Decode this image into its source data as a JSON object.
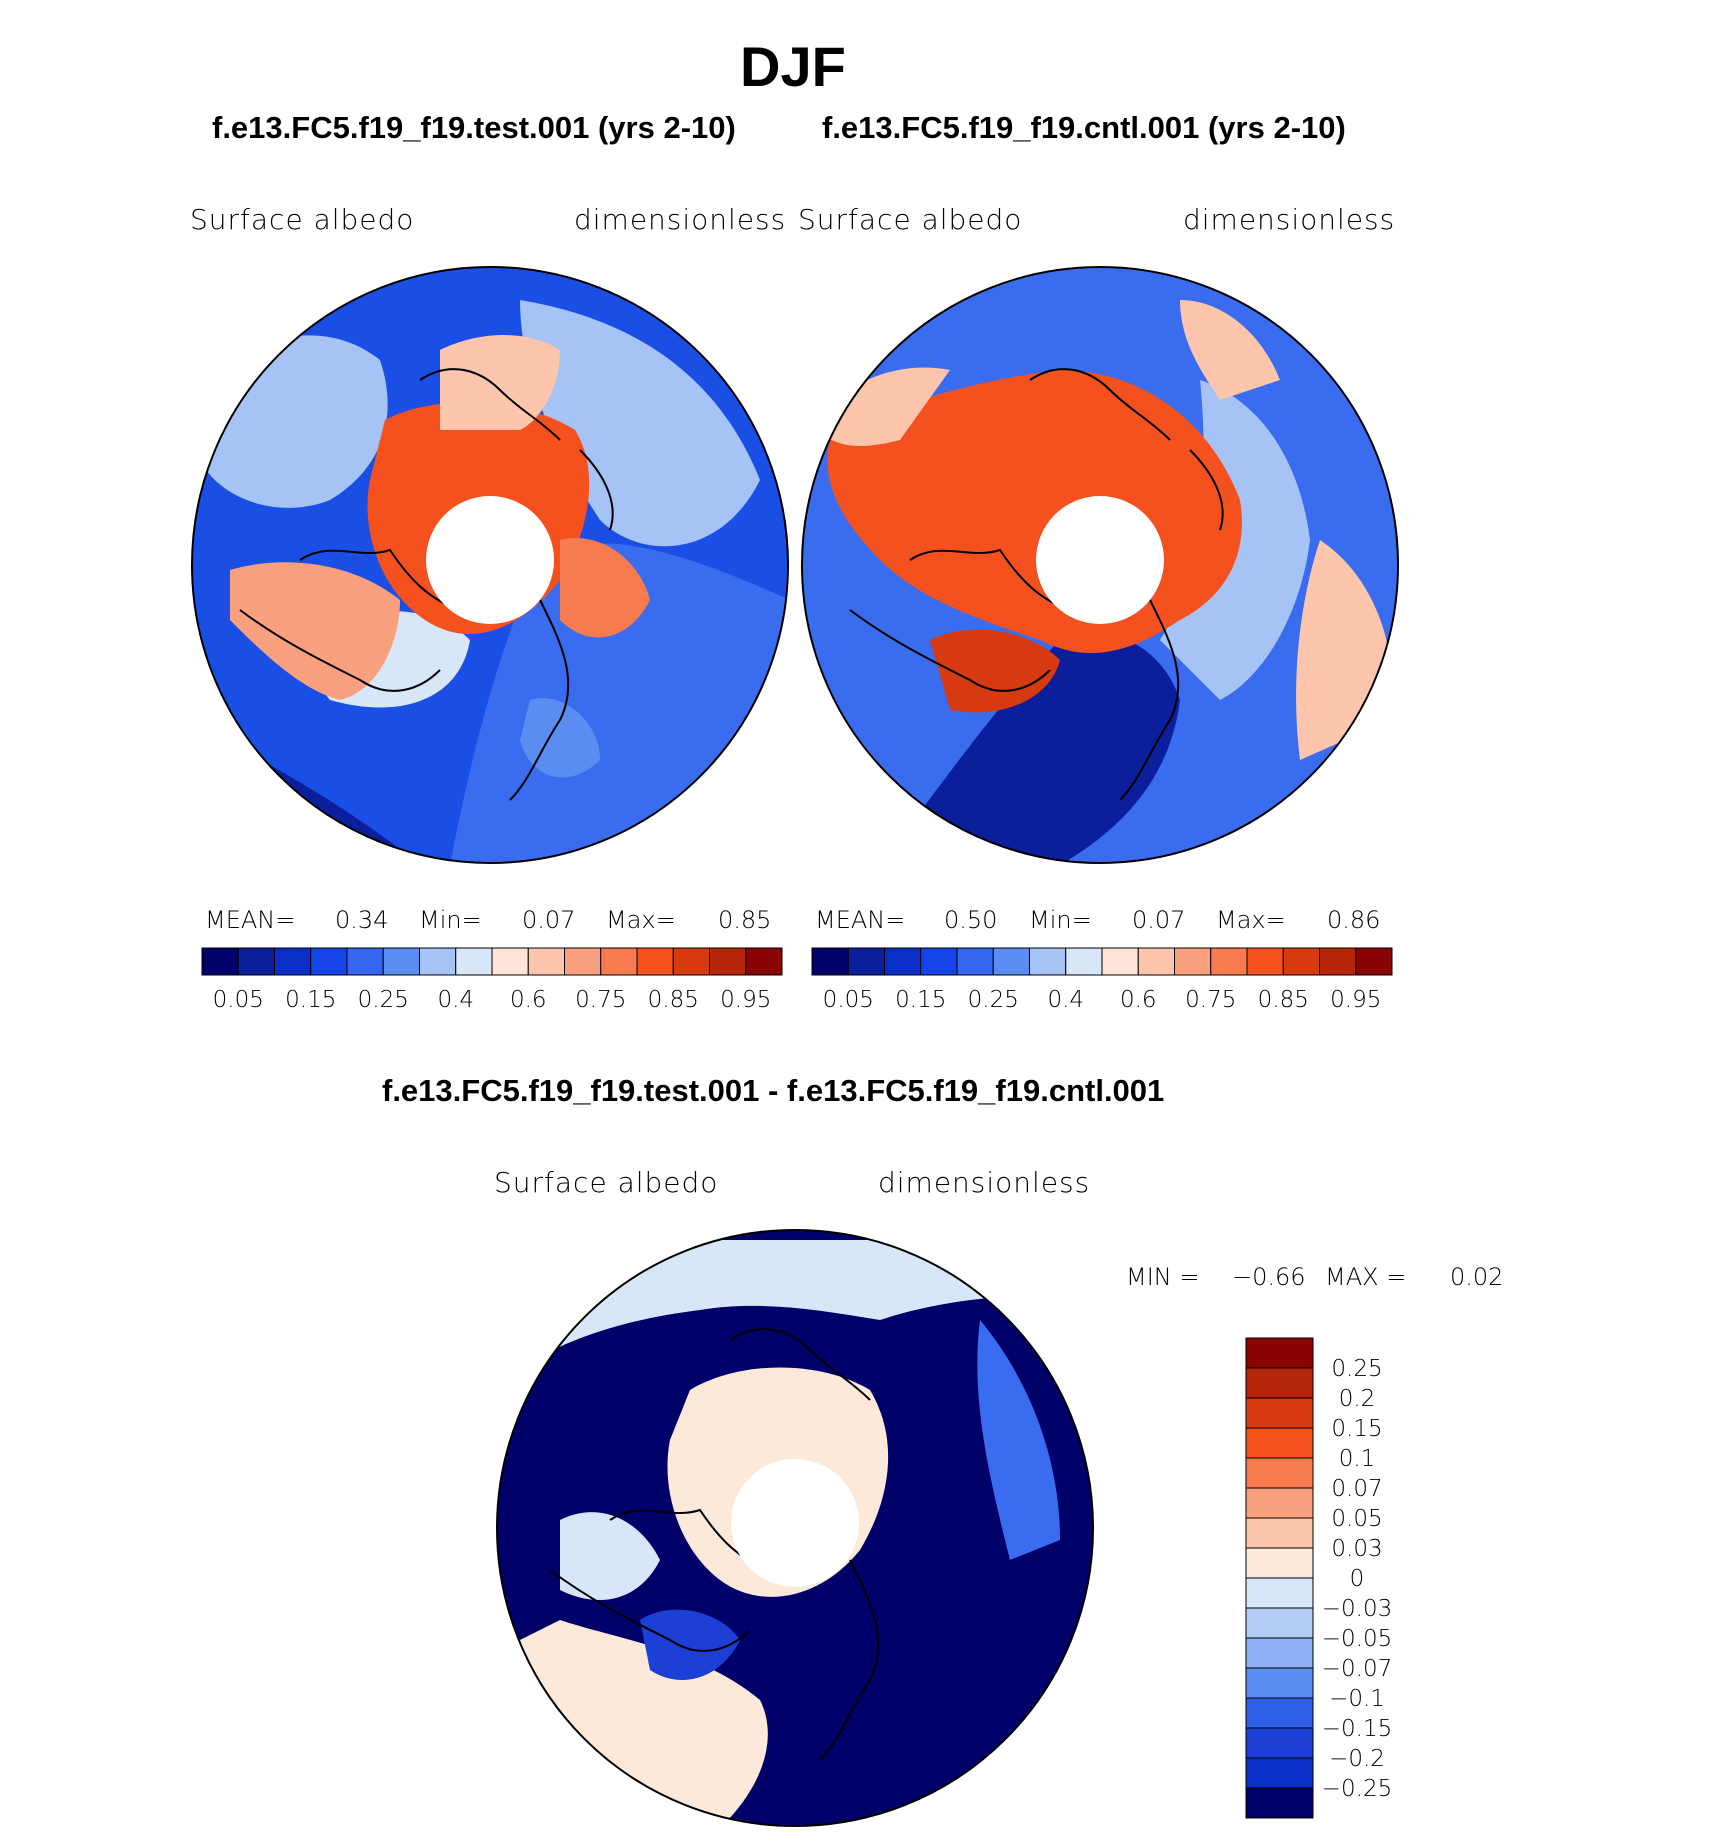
{
  "season": "DJF",
  "panels": [
    {
      "case_title": "f.e13.FC5.f19_f19.test.001 (yrs 2-10)",
      "variable": "Surface  albedo",
      "units": "dimensionless",
      "stats": {
        "mean_label": "MEAN=",
        "mean": "0.34",
        "min_label": "Min=",
        "min": "0.07",
        "max_label": "Max=",
        "max": "0.85"
      }
    },
    {
      "case_title": "f.e13.FC5.f19_f19.cntl.001 (yrs 2-10)",
      "variable": "Surface  albedo",
      "units": "dimensionless",
      "stats": {
        "mean_label": "MEAN=",
        "mean": "0.50",
        "min_label": "Min=",
        "min": "0.07",
        "max_label": "Max=",
        "max": "0.86"
      }
    }
  ],
  "diff_panel": {
    "case_title": "f.e13.FC5.f19_f19.test.001 - f.e13.FC5.f19_f19.cntl.001",
    "variable": "Surface  albedo",
    "units": "dimensionless",
    "stats": {
      "min_label": "MIN =",
      "min": "−0.66",
      "max_label": "MAX =",
      "max": "0.02"
    }
  },
  "chart_data": [
    {
      "type": "heatmap",
      "projection": "north-polar-stereographic",
      "title": "Surface  albedo",
      "units": "dimensionless",
      "mean": 0.34,
      "min": 0.07,
      "max": 0.85,
      "colorbar": {
        "orientation": "horizontal",
        "levels": [
          0.05,
          0.1,
          0.15,
          0.2,
          0.25,
          0.3,
          0.4,
          0.5,
          0.6,
          0.7,
          0.75,
          0.8,
          0.85,
          0.9,
          0.95
        ],
        "tick_labels": [
          "0.05",
          "0.15",
          "0.25",
          "0.4",
          "0.6",
          "0.75",
          "0.85",
          "0.95"
        ],
        "colors": [
          "#00006b",
          "#0b1f9c",
          "#0a2fc8",
          "#1544e6",
          "#3466f0",
          "#5a8cf2",
          "#a6c3f5",
          "#d8e6fa",
          "#fde4d4",
          "#fcc5ac",
          "#f9a07e",
          "#f77b4f",
          "#f4511e",
          "#d63a0e",
          "#b52508",
          "#8a0404"
        ]
      }
    },
    {
      "type": "heatmap",
      "projection": "north-polar-stereographic",
      "title": "Surface  albedo",
      "units": "dimensionless",
      "mean": 0.5,
      "min": 0.07,
      "max": 0.86,
      "colorbar": {
        "orientation": "horizontal",
        "levels": [
          0.05,
          0.1,
          0.15,
          0.2,
          0.25,
          0.3,
          0.4,
          0.5,
          0.6,
          0.7,
          0.75,
          0.8,
          0.85,
          0.9,
          0.95
        ],
        "tick_labels": [
          "0.05",
          "0.15",
          "0.25",
          "0.4",
          "0.6",
          "0.75",
          "0.85",
          "0.95"
        ],
        "colors": [
          "#00006b",
          "#0b1f9c",
          "#0a2fc8",
          "#1544e6",
          "#3466f0",
          "#5a8cf2",
          "#a6c3f5",
          "#d8e6fa",
          "#fde4d4",
          "#fcc5ac",
          "#f9a07e",
          "#f77b4f",
          "#f4511e",
          "#d63a0e",
          "#b52508",
          "#8a0404"
        ]
      }
    },
    {
      "type": "heatmap",
      "projection": "north-polar-stereographic",
      "title": "Surface  albedo",
      "units": "dimensionless",
      "min": -0.66,
      "max": 0.02,
      "colorbar": {
        "orientation": "vertical",
        "levels": [
          -0.25,
          -0.2,
          -0.15,
          -0.1,
          -0.07,
          -0.05,
          -0.03,
          0,
          0.03,
          0.05,
          0.07,
          0.1,
          0.15,
          0.2,
          0.25
        ],
        "tick_labels": [
          "0.25",
          "0.2",
          "0.15",
          "0.1",
          "0.07",
          "0.05",
          "0.03",
          "0",
          "−0.03",
          "−0.05",
          "−0.07",
          "−0.1",
          "−0.15",
          "−0.2",
          "−0.25"
        ],
        "colors": [
          "#8a0404",
          "#b52508",
          "#d63a0e",
          "#f4511e",
          "#f77b4f",
          "#f9a07e",
          "#fcc5ac",
          "#fde9d9",
          "#d8e6fa",
          "#b5cdf6",
          "#8cb0f3",
          "#5a8cf2",
          "#2f5ee8",
          "#1c3fd6",
          "#0a2fc8",
          "#00006b"
        ]
      }
    }
  ]
}
